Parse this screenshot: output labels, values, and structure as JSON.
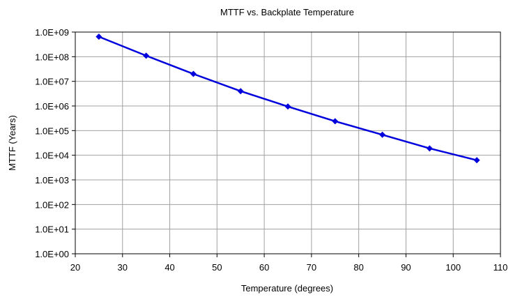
{
  "chart_data": {
    "type": "line",
    "title": "MTTF vs. Backplate Temperature",
    "xlabel": "Temperature (degrees)",
    "ylabel": "MTTF (Years)",
    "xlim": [
      20,
      110
    ],
    "xticks": [
      20,
      30,
      40,
      50,
      60,
      70,
      80,
      90,
      100,
      110
    ],
    "xtick_labels": [
      "20",
      "30",
      "40",
      "50",
      "60",
      "70",
      "80",
      "90",
      "100",
      "110"
    ],
    "yscale": "log",
    "ylim": [
      1,
      1000000000
    ],
    "yticks": [
      1,
      10,
      100,
      1000,
      10000,
      100000,
      1000000,
      10000000,
      100000000,
      1000000000
    ],
    "ytick_labels": [
      "1.0E+00",
      "1.0E+01",
      "1.0E+02",
      "1.0E+03",
      "1.0E+04",
      "1.0E+05",
      "1.0E+06",
      "1.0E+07",
      "1.0E+08",
      "1.0E+09"
    ],
    "grid": true,
    "legend": "none",
    "series": [
      {
        "color": "#0000dd",
        "marker": "diamond",
        "x": [
          25,
          35,
          45,
          55,
          65,
          75,
          85,
          95,
          105
        ],
        "y": [
          650000000,
          110000000,
          20000000,
          4000000,
          950000,
          240000,
          68000,
          19000,
          6300
        ]
      }
    ]
  }
}
